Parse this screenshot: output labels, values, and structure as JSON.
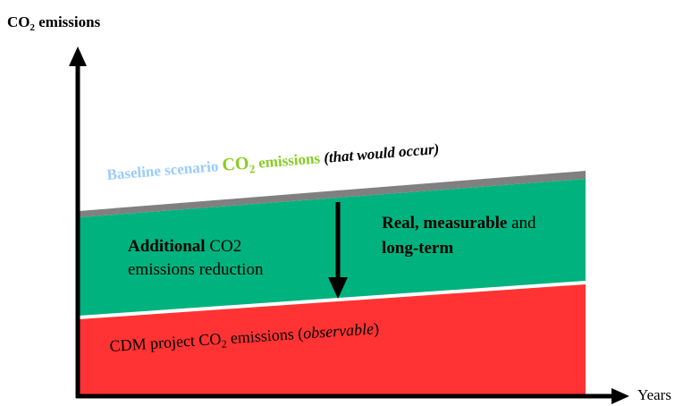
{
  "axes": {
    "y_label_main": "CO",
    "y_label_sub": "2",
    "y_label_rest": " emissions",
    "x_label": "Years"
  },
  "baseline": {
    "part1": "Baseline scenario ",
    "part2_main": "CO",
    "part2_sub": "2",
    "part2_rest": " emissions ",
    "part3": "(that would occur)"
  },
  "reduction": {
    "line1_bold": "Additional",
    "line1_rest": " CO2",
    "line2": "emissions reduction"
  },
  "characteristics": {
    "line1_bold": "Real, measurable",
    "line1_rest": " and",
    "line2": "long-term"
  },
  "project": {
    "part1": "CDM project CO",
    "sub": "2",
    "part2": " emissions (",
    "italic": "observable",
    "part3": ")"
  },
  "colors": {
    "baseline_band": "#808080",
    "reduction_area": "#00b37e",
    "project_area": "#ff3333",
    "baseline_text_blue": "#99ccff",
    "baseline_text_green": "#88cc22",
    "axis": "#000000"
  }
}
